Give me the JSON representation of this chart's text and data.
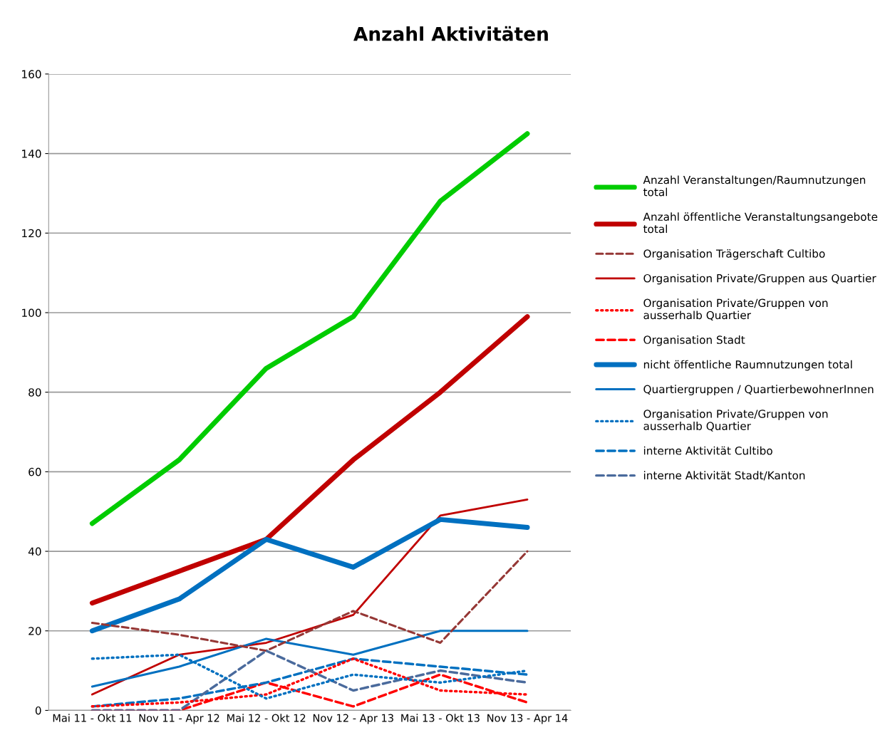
{
  "chart_data": {
    "type": "line",
    "title": "Anzahl Aktivitäten",
    "categories": [
      "Mai 11 - Okt 11",
      "Nov 11 - Apr 12",
      "Mai 12 - Okt 12",
      "Nov 12 - Apr 13",
      "Mai 13 - Okt 13",
      "Nov 13 - Apr 14"
    ],
    "series": [
      {
        "name": "Anzahl Veranstaltungen/Raumnutzungen total",
        "color": "#00cc00",
        "line_style": "solid",
        "values": [
          47,
          63,
          86,
          99,
          128,
          145
        ]
      },
      {
        "name": "Anzahl öffentliche Veranstaltungsangebote total",
        "color": "#c00000",
        "line_style": "solid",
        "values": [
          27,
          35,
          43,
          63,
          80,
          99
        ]
      },
      {
        "name": "Organisation Trägerschaft Cultibo",
        "color": "#953735",
        "line_style": "dashed",
        "values": [
          22,
          19,
          15,
          25,
          17,
          40
        ]
      },
      {
        "name": "Organisation Private/Gruppen aus Quartier",
        "color": "#c00000",
        "line_style": "solid",
        "values": [
          4,
          14,
          17,
          24,
          49,
          53
        ]
      },
      {
        "name": "Organisation Private/Gruppen von ausserhalb Quartier",
        "color": "#ff0000",
        "line_style": "dotted",
        "values": [
          1,
          2,
          4,
          13,
          5,
          4
        ]
      },
      {
        "name": "Organisation Stadt",
        "color": "#ff0000",
        "line_style": "dashed",
        "values": [
          0,
          0,
          7,
          1,
          9,
          2
        ]
      },
      {
        "name": "nicht öffentliche Raumnutzungen total",
        "color": "#0070c0",
        "line_style": "solid",
        "values": [
          20,
          28,
          43,
          36,
          48,
          46
        ]
      },
      {
        "name": "Quartiergruppen / QuartierbewohnerInnen",
        "color": "#0070c0",
        "line_style": "solid",
        "values": [
          6,
          11,
          18,
          14,
          20,
          20
        ]
      },
      {
        "name": "Organisation Private/Gruppen von ausserhalb Quartier",
        "color": "#0070c0",
        "line_style": "dotted",
        "values": [
          13,
          14,
          3,
          9,
          7,
          10
        ]
      },
      {
        "name": "interne Aktivität Cultibo",
        "color": "#0070c0",
        "line_style": "dashed",
        "values": [
          1,
          3,
          7,
          13,
          11,
          9
        ]
      },
      {
        "name": "interne Aktivität Stadt/Kanton",
        "color": "#4a6a9c",
        "line_style": "dashed",
        "values": [
          0,
          0,
          15,
          5,
          10,
          7
        ]
      }
    ],
    "ylim": [
      0,
      160
    ],
    "yticks": [
      0,
      20,
      40,
      60,
      80,
      100,
      120,
      140,
      160
    ],
    "grid": "y",
    "legend": "right",
    "marker": "none"
  }
}
